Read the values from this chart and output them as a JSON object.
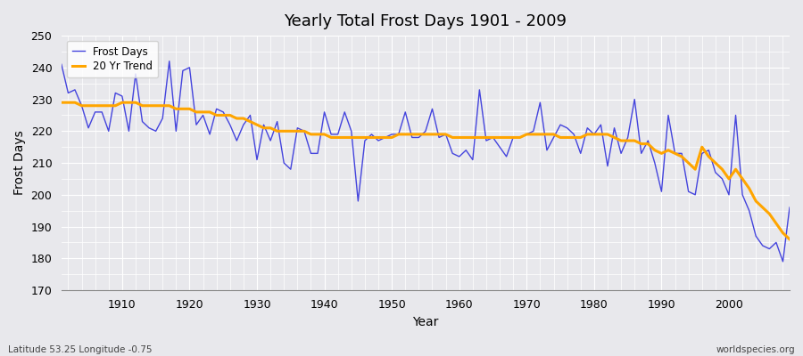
{
  "title": "Yearly Total Frost Days 1901 - 2009",
  "xlabel": "Year",
  "ylabel": "Frost Days",
  "lat_lon_label": "Latitude 53.25 Longitude -0.75",
  "watermark": "worldspecies.org",
  "line_color": "#4444dd",
  "trend_color": "#FFA500",
  "bg_color": "#e8e8ec",
  "plot_bg_color": "#e8e8ec",
  "grid_color": "#ffffff",
  "ylim": [
    170,
    250
  ],
  "xlim": [
    1901,
    2009
  ],
  "yticks": [
    170,
    180,
    190,
    200,
    210,
    220,
    230,
    240,
    250
  ],
  "xticks": [
    1910,
    1920,
    1930,
    1940,
    1950,
    1960,
    1970,
    1980,
    1990,
    2000
  ],
  "years": [
    1901,
    1902,
    1903,
    1904,
    1905,
    1906,
    1907,
    1908,
    1909,
    1910,
    1911,
    1912,
    1913,
    1914,
    1915,
    1916,
    1917,
    1918,
    1919,
    1920,
    1921,
    1922,
    1923,
    1924,
    1925,
    1926,
    1927,
    1928,
    1929,
    1930,
    1931,
    1932,
    1933,
    1934,
    1935,
    1936,
    1937,
    1938,
    1939,
    1940,
    1941,
    1942,
    1943,
    1944,
    1945,
    1946,
    1947,
    1948,
    1949,
    1950,
    1951,
    1952,
    1953,
    1954,
    1955,
    1956,
    1957,
    1958,
    1959,
    1960,
    1961,
    1962,
    1963,
    1964,
    1965,
    1966,
    1967,
    1968,
    1969,
    1970,
    1971,
    1972,
    1973,
    1974,
    1975,
    1976,
    1977,
    1978,
    1979,
    1980,
    1981,
    1982,
    1983,
    1984,
    1985,
    1986,
    1987,
    1988,
    1989,
    1990,
    1991,
    1992,
    1993,
    1994,
    1995,
    1996,
    1997,
    1998,
    1999,
    2000,
    2001,
    2002,
    2003,
    2004,
    2005,
    2006,
    2007,
    2008,
    2009
  ],
  "frost_days": [
    241,
    232,
    233,
    228,
    221,
    226,
    226,
    220,
    232,
    231,
    220,
    238,
    223,
    221,
    220,
    224,
    242,
    220,
    239,
    240,
    222,
    225,
    219,
    227,
    226,
    222,
    217,
    222,
    225,
    211,
    222,
    217,
    223,
    210,
    208,
    221,
    220,
    213,
    213,
    226,
    219,
    219,
    226,
    220,
    198,
    217,
    219,
    217,
    218,
    219,
    219,
    226,
    218,
    218,
    220,
    227,
    218,
    219,
    213,
    212,
    214,
    211,
    233,
    217,
    218,
    215,
    212,
    218,
    218,
    219,
    220,
    229,
    214,
    218,
    222,
    221,
    219,
    213,
    221,
    219,
    222,
    209,
    221,
    213,
    218,
    230,
    213,
    217,
    210,
    201,
    225,
    213,
    213,
    201,
    200,
    213,
    214,
    207,
    205,
    200,
    225,
    200,
    195,
    187,
    184,
    183,
    185,
    179,
    196
  ],
  "trend_values": [
    229,
    229,
    229,
    228,
    228,
    228,
    228,
    228,
    228,
    229,
    229,
    229,
    228,
    228,
    228,
    228,
    228,
    227,
    227,
    227,
    226,
    226,
    226,
    225,
    225,
    225,
    224,
    224,
    223,
    222,
    221,
    221,
    220,
    220,
    220,
    220,
    220,
    219,
    219,
    219,
    218,
    218,
    218,
    218,
    218,
    218,
    218,
    218,
    218,
    218,
    219,
    219,
    219,
    219,
    219,
    219,
    219,
    219,
    218,
    218,
    218,
    218,
    218,
    218,
    218,
    218,
    218,
    218,
    218,
    219,
    219,
    219,
    219,
    219,
    218,
    218,
    218,
    218,
    219,
    219,
    219,
    219,
    218,
    217,
    217,
    217,
    216,
    216,
    214,
    213,
    214,
    213,
    212,
    210,
    208,
    215,
    212,
    210,
    208,
    205,
    208,
    205,
    202,
    198,
    196,
    194,
    191,
    188,
    186
  ]
}
